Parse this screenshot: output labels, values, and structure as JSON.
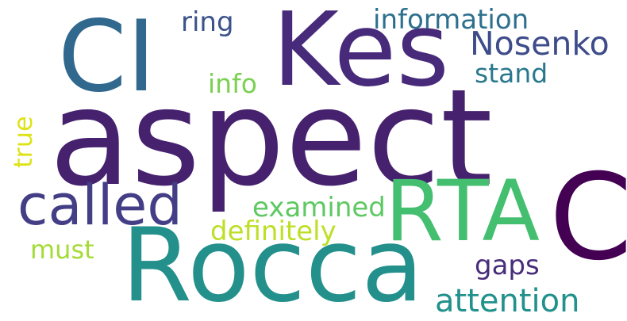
{
  "words": {
    "aspect": {
      "text": "aspect",
      "color": "#46216e"
    },
    "rocca": {
      "text": "Rocca",
      "color": "#23908c"
    },
    "ci": {
      "text": "CI",
      "color": "#31688e"
    },
    "kes": {
      "text": "Kes",
      "color": "#472a7a"
    },
    "rta": {
      "text": "RTA",
      "color": "#44bf70"
    },
    "c": {
      "text": "C",
      "color": "#440154"
    },
    "called": {
      "text": "called",
      "color": "#433e85"
    },
    "information": {
      "text": "information",
      "color": "#2d708e"
    },
    "nosenko": {
      "text": "Nosenko",
      "color": "#3e4c8a"
    },
    "stand": {
      "text": "stand",
      "color": "#2a788e"
    },
    "ring": {
      "text": "ring",
      "color": "#3b528b"
    },
    "info": {
      "text": "info",
      "color": "#7ad151"
    },
    "true": {
      "text": "true",
      "color": "#dde318"
    },
    "examined": {
      "text": "examined",
      "color": "#5ec962"
    },
    "definitely": {
      "text": "definitely",
      "color": "#bddf26"
    },
    "must": {
      "text": "must",
      "color": "#a5db36"
    },
    "gaps": {
      "text": "gaps",
      "color": "#472d7b"
    },
    "attention": {
      "text": "attention",
      "color": "#21918c"
    }
  }
}
